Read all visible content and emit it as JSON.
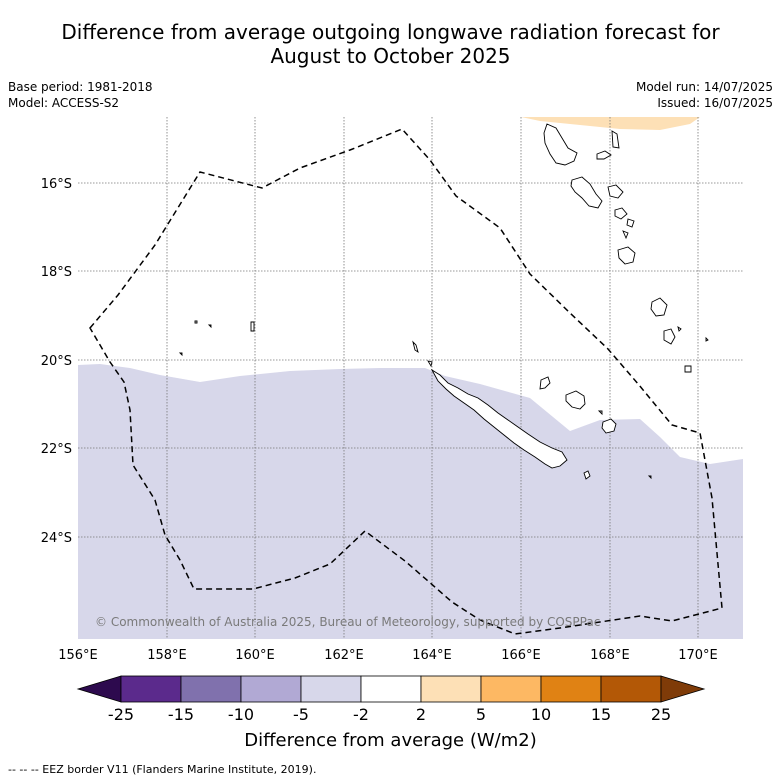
{
  "title_line1": "Difference from average outgoing longwave radiation forecast for",
  "title_line2": "August to October 2025",
  "base_period": "Base period: 1981-2018",
  "model": "Model: ACCESS-S2",
  "model_run": "Model run: 14/07/2025",
  "issued": "Issued: 16/07/2025",
  "copyright": "© Commonwealth of Australia 2025, Bureau of Meteorology, supported by COSPPac",
  "lon_labels": [
    "156°E",
    "158°E",
    "160°E",
    "162°E",
    "164°E",
    "166°E",
    "168°E",
    "170°E"
  ],
  "lat_labels": [
    "16°S",
    "18°S",
    "20°S",
    "22°S",
    "24°S"
  ],
  "colorbar": {
    "title": "Difference from average (W/m2)",
    "labels": [
      "-25",
      "-15",
      "-10",
      "-5",
      "-2",
      "2",
      "5",
      "10",
      "15",
      "25"
    ],
    "colors": [
      "#2d0a4e",
      "#5b2a8c",
      "#8071ad",
      "#b1a9d4",
      "#d7d7ea",
      "#ffffff",
      "#fde0b6",
      "#fdb863",
      "#e08214",
      "#b35806",
      "#7f3b08"
    ]
  },
  "footnote": "--  --  -- EEZ border V11 (Flanders Marine Institute, 2019).",
  "chart_data": {
    "type": "heatmap",
    "title": "Difference from average outgoing longwave radiation forecast for August to October 2025",
    "xlim": [
      156,
      171
    ],
    "ylim": [
      -26.3,
      -14.5
    ],
    "units": "W/m2",
    "regions": [
      {
        "category": "-5 to -2",
        "color": "#d7d7ea",
        "extent": "south of ~20.2°S across map"
      },
      {
        "category": "2 to 5",
        "color": "#fde0b6",
        "extent": "small patch near 15°S, 166–169°E"
      }
    ]
  }
}
